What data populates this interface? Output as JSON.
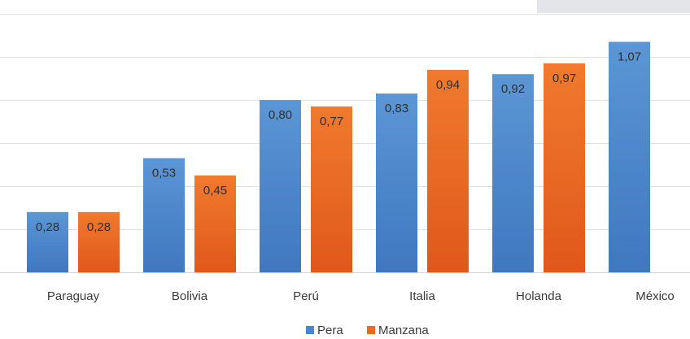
{
  "chart_data": {
    "type": "bar",
    "title": "",
    "xlabel": "",
    "ylabel": "",
    "ylim": [
      0,
      1.2
    ],
    "grid": true,
    "legend_position": "bottom",
    "categories": [
      "Paraguay",
      "Bolivia",
      "Perú",
      "Italia",
      "Holanda",
      "México"
    ],
    "series": [
      {
        "name": "Pera",
        "color": "#4a86cc",
        "values": [
          0.28,
          0.53,
          0.8,
          0.83,
          0.92,
          1.07
        ],
        "labels": [
          "0,28",
          "0,53",
          "0,80",
          "0,83",
          "0,92",
          "1,07"
        ]
      },
      {
        "name": "Manzana",
        "color": "#ec6a24",
        "values": [
          0.28,
          0.45,
          0.77,
          0.94,
          0.97,
          null
        ],
        "labels": [
          "0,28",
          "0,45",
          "0,77",
          "0,94",
          "0,97",
          ""
        ]
      }
    ]
  }
}
